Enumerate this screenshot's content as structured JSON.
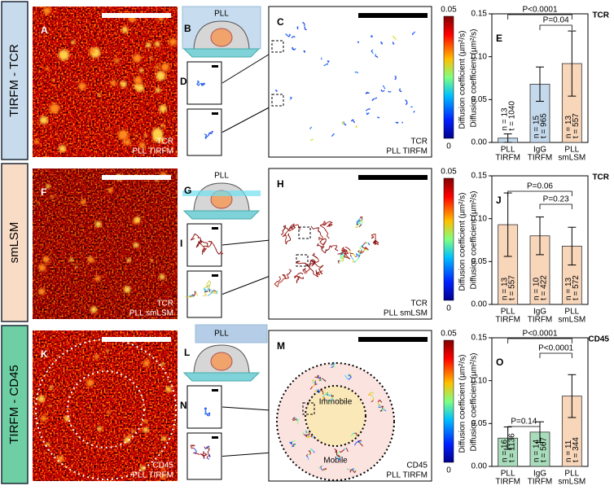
{
  "rows": [
    {
      "label": "TIRFM - TCR",
      "image": {
        "letter": "A",
        "caption": [
          "TCR",
          "PLL TIRFM"
        ]
      },
      "schematic": {
        "letter": "B",
        "text": "PLL"
      },
      "inset_letter": "D",
      "tracks": {
        "letter": "C",
        "caption": [
          "TCR",
          "PLL TIRFM"
        ]
      },
      "colorbar": {
        "max": 0.05,
        "min": 0,
        "label": "Diffusion coefficient (µm²/s)"
      },
      "chart": {
        "type": "bar",
        "letter": "E",
        "title": "TCR",
        "ylabel": "Diffusion coefficient (µm²/s)",
        "ylim": [
          0,
          0.15
        ],
        "yticks": [
          {
            "value": 0,
            "label": "0.00"
          },
          {
            "value": 0.05,
            "label": "0.05"
          },
          {
            "value": 0.1,
            "label": "0.10"
          },
          {
            "value": 0.15,
            "label": "0.15"
          }
        ],
        "categories": [
          [
            "PLL",
            "TIRFM"
          ],
          [
            "IgG",
            "TIRFM"
          ],
          [
            "PLL",
            "smLSM"
          ]
        ],
        "colors": [
          "#c5d9ec",
          "#c5d9ec",
          "#f8d6ba"
        ],
        "values": [
          0.005,
          0.068,
          0.092
        ],
        "errors": [
          0.005,
          0.02,
          0.038
        ],
        "bar_labels": [
          [
            "n = 13",
            "t = 1040"
          ],
          [
            "n = 15",
            "t = 965"
          ],
          [
            "n = 13",
            "t = 557"
          ]
        ],
        "comparisons": [
          "P<0.0001",
          "P=0.04"
        ]
      }
    },
    {
      "label": "smLSM",
      "image": {
        "letter": "F",
        "caption": [
          "TCR",
          "PLL smLSM"
        ]
      },
      "schematic": {
        "letter": "G",
        "text": "PLL"
      },
      "inset_letter": "I",
      "tracks": {
        "letter": "H",
        "caption": [
          "TCR",
          "PLL smLSM"
        ]
      },
      "colorbar": {
        "max": 0.05,
        "min": 0,
        "label": "Diffusion coefficient (µm²/s)"
      },
      "chart": {
        "type": "bar",
        "letter": "J",
        "title": "TCR",
        "ylabel": "Diffusion coefficient (µm²/s)",
        "ylim": [
          0,
          0.15
        ],
        "yticks": [
          {
            "value": 0,
            "label": "0.00"
          },
          {
            "value": 0.05,
            "label": "0.05"
          },
          {
            "value": 0.1,
            "label": "0.10"
          },
          {
            "value": 0.15,
            "label": "0.15"
          }
        ],
        "categories": [
          [
            "PLL",
            "TIRFM"
          ],
          [
            "IgG",
            "TIRFM"
          ],
          [
            "PLL",
            "smLSM"
          ]
        ],
        "colors": [
          "#f8d6ba",
          "#f8d6ba",
          "#f8d6ba"
        ],
        "values": [
          0.093,
          0.08,
          0.068
        ],
        "errors": [
          0.037,
          0.022,
          0.022
        ],
        "bar_labels": [
          [
            "n = 13",
            "t = 557"
          ],
          [
            "n = 10",
            "t = 422"
          ],
          [
            "n = 13",
            "t = 572"
          ]
        ],
        "comparisons": [
          "P=0.06",
          "P=0.23"
        ]
      }
    },
    {
      "label": "TIRFM - CD45",
      "image": {
        "letter": "K",
        "caption": [
          "CD45",
          "PLL TIRFM"
        ]
      },
      "schematic": {
        "letter": "L",
        "text": "PLL"
      },
      "inset_letter": "N",
      "tracks": {
        "letter": "M",
        "caption": [
          "CD45",
          "PLL TIRFM"
        ],
        "regions": [
          "Immobile",
          "Mobile"
        ]
      },
      "colorbar": {
        "max": 0.05,
        "min": 0,
        "label": "Diffusion coefficient (µm²/s)"
      },
      "chart": {
        "type": "bar",
        "letter": "O",
        "title": "CD45",
        "ylabel": "Diffusion coefficient (µm²/s)",
        "ylim": [
          0,
          0.15
        ],
        "yticks": [
          {
            "value": 0,
            "label": "0.00"
          },
          {
            "value": 0.05,
            "label": "0.05"
          },
          {
            "value": 0.1,
            "label": "0.10"
          },
          {
            "value": 0.15,
            "label": "0.15"
          }
        ],
        "categories": [
          [
            "PLL",
            "TIRFM"
          ],
          [
            "IgG",
            "TIRFM"
          ],
          [
            "PLL",
            "smLSM"
          ]
        ],
        "colors": [
          "#a9dcbb",
          "#a9dcbb",
          "#f8d6ba"
        ],
        "values": [
          0.033,
          0.04,
          0.082
        ],
        "errors": [
          0.013,
          0.012,
          0.025
        ],
        "bar_labels": [
          [
            "n = 16",
            "t = 1136"
          ],
          [
            "n = 14",
            "t = 567"
          ],
          [
            "n = 11",
            "t = 344"
          ]
        ],
        "comparisons": [
          "P<0.0001",
          "P<0.0001",
          "P=0.14"
        ]
      }
    }
  ]
}
